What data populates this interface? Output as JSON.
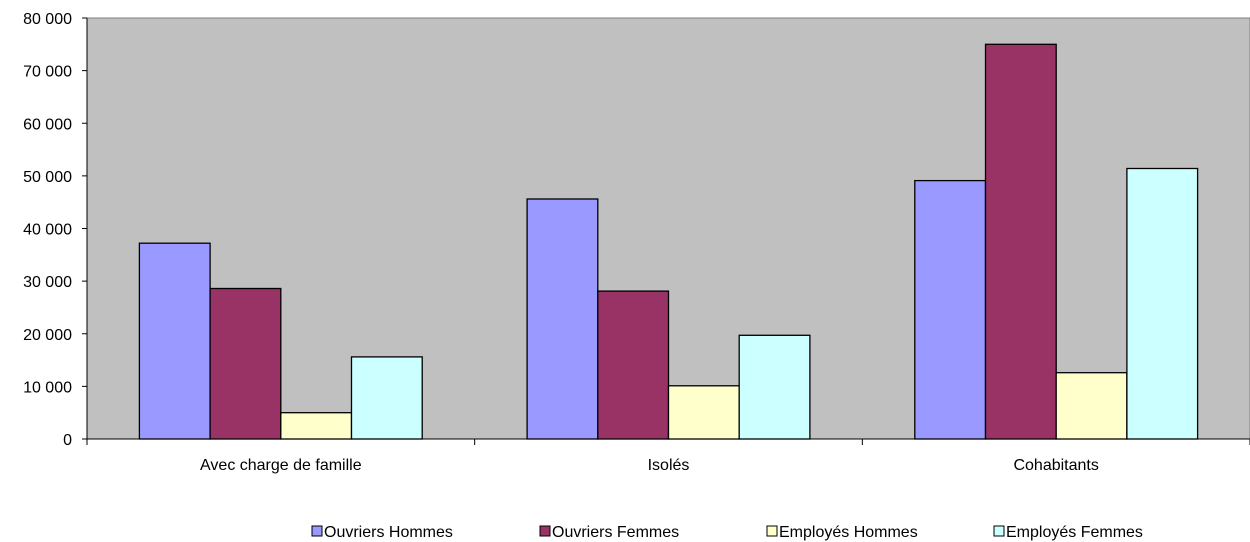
{
  "chart_data": {
    "type": "bar",
    "title": "",
    "xlabel": "",
    "ylabel": "",
    "categories": [
      "Avec charge de famille",
      "Isolés",
      "Cohabitants"
    ],
    "series": [
      {
        "name": "Ouvriers Hommes",
        "values": [
          37200,
          45600,
          49100
        ],
        "color": "#9999ff"
      },
      {
        "name": "Ouvriers Femmes",
        "values": [
          28600,
          28100,
          75000
        ],
        "color": "#993366"
      },
      {
        "name": "Employés Hommes",
        "values": [
          5000,
          10100,
          12600
        ],
        "color": "#ffffcc"
      },
      {
        "name": "Employés Femmes",
        "values": [
          15600,
          19700,
          51400
        ],
        "color": "#ccffff"
      }
    ],
    "ylim": [
      0,
      80000
    ],
    "yticks": [
      0,
      10000,
      20000,
      30000,
      40000,
      50000,
      60000,
      70000,
      80000
    ],
    "ytick_labels": [
      "0",
      "10 000",
      "20 000",
      "30 000",
      "40 000",
      "50 000",
      "60 000",
      "70 000",
      "80 000"
    ],
    "plot_background": "#c0c0c0",
    "grid": false,
    "legend_position": "bottom"
  }
}
